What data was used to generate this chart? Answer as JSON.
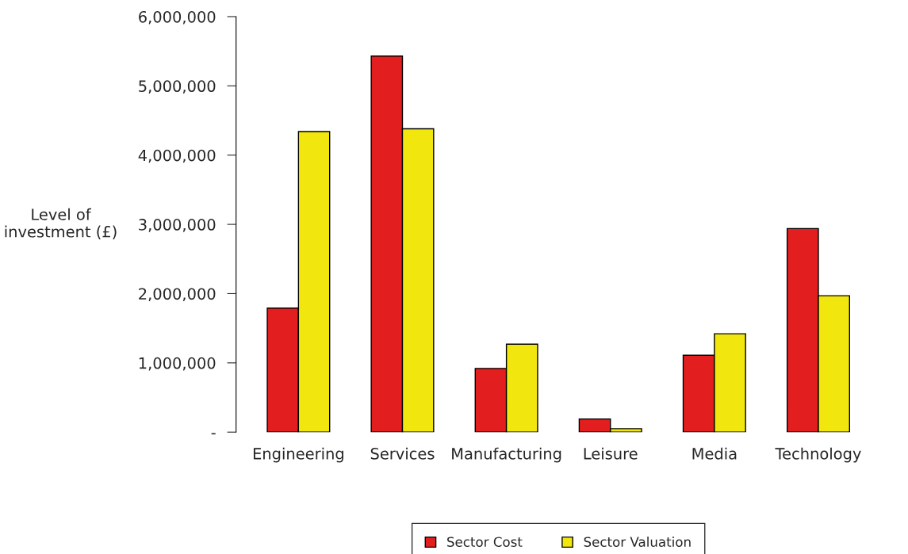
{
  "chart_data": {
    "type": "bar",
    "ylabel": "Level of\ninvestment (£)",
    "categories": [
      "Engineering",
      "Services",
      "Manufacturing",
      "Leisure",
      "Media",
      "Technology"
    ],
    "series": [
      {
        "name": "Sector Cost",
        "color": "#e31e1e",
        "values": [
          1790000,
          5430000,
          920000,
          190000,
          1110000,
          2940000
        ]
      },
      {
        "name": "Sector Valuation",
        "color": "#f2e60f",
        "values": [
          4340000,
          4380000,
          1270000,
          50000,
          1420000,
          1970000
        ]
      }
    ],
    "ylim": [
      0,
      6000000
    ],
    "yticks": [
      {
        "value": 0,
        "label": "-"
      },
      {
        "value": 1000000,
        "label": "1,000,000"
      },
      {
        "value": 2000000,
        "label": "2,000,000"
      },
      {
        "value": 3000000,
        "label": "3,000,000"
      },
      {
        "value": 4000000,
        "label": "4,000,000"
      },
      {
        "value": 5000000,
        "label": "5,000,000"
      },
      {
        "value": 6000000,
        "label": "6,000,000"
      }
    ],
    "grid": false,
    "legend": "bottom"
  }
}
